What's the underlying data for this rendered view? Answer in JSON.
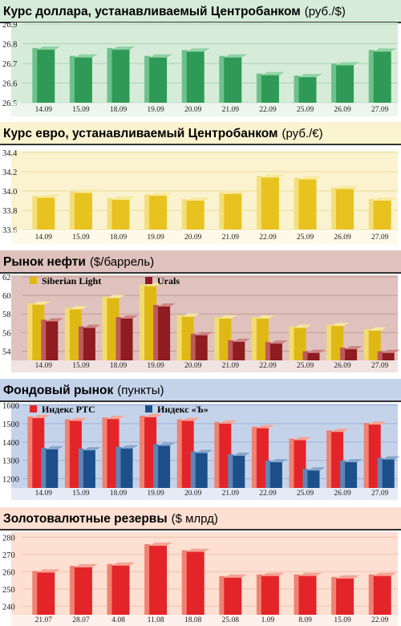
{
  "colors": {
    "usd": {
      "front": "#2f9a57",
      "side": "#6cc28a",
      "top": "#8fd3a5",
      "panel": "#d6ecd9",
      "grid": "#a9d3b4"
    },
    "eur": {
      "front": "#e8c31f",
      "side": "#f3df7a",
      "top": "#f7e99f",
      "panel": "#fbf3cf",
      "grid": "#e9dd9a"
    },
    "oil_a": {
      "front": "#e0b814",
      "side": "#f2dc72",
      "top": "#f6e79b"
    },
    "oil_b": {
      "front": "#8e1c20",
      "side": "#bf5a5c",
      "top": "#cf8385"
    },
    "oil_panel": "#dfc2bd",
    "oil_grid": "#c39d97",
    "stock_a": {
      "front": "#e3252a",
      "side": "#f08272",
      "top": "#f5a395"
    },
    "stock_b": {
      "front": "#1d4f8a",
      "side": "#5d86b8",
      "top": "#87a6cc"
    },
    "stock_panel": "#c5d3ea",
    "stock_grid": "#9fb3d5",
    "res": {
      "front": "#e3252a",
      "side": "#f08272",
      "top": "#f5a395",
      "panel": "#fde0d2",
      "grid": "#f0bfae"
    }
  },
  "chart_data": [
    {
      "type": "bar",
      "title": "Курс доллара, устанавливаемый Центробанком",
      "unit": "(руб./$)",
      "categories": [
        "14.09",
        "15.09",
        "18.09",
        "19.09",
        "20.09",
        "21.09",
        "22.09",
        "25.09",
        "26.09",
        "27.09"
      ],
      "yticks": [
        "26.9",
        "26.8",
        "26.7",
        "26.6",
        "26.5"
      ],
      "ylim": [
        26.5,
        26.9
      ],
      "series": [
        {
          "values": [
            26.77,
            26.73,
            26.77,
            26.73,
            26.76,
            26.73,
            26.64,
            26.63,
            26.69,
            26.76
          ]
        }
      ]
    },
    {
      "type": "bar",
      "title": "Курс евро, устанавливаемый Центробанком",
      "unit": "(руб./€)",
      "categories": [
        "14.09",
        "15.09",
        "18.09",
        "19.09",
        "20.09",
        "21.09",
        "22.09",
        "25.09",
        "26.09",
        "27.09"
      ],
      "yticks": [
        "34.4",
        "34.2",
        "34.0",
        "33.8",
        "33.6"
      ],
      "ylim": [
        33.6,
        34.4
      ],
      "series": [
        {
          "values": [
            33.93,
            33.98,
            33.91,
            33.95,
            33.9,
            33.97,
            34.14,
            34.12,
            34.02,
            33.9
          ]
        }
      ]
    },
    {
      "type": "bar",
      "title": "Рынок нефти",
      "unit": "($/баррель)",
      "categories": [
        "14.09",
        "15.09",
        "18.09",
        "19.09",
        "20.09",
        "21.09",
        "22.09",
        "25.09",
        "26.09",
        "27.09"
      ],
      "yticks": [
        "62",
        "60",
        "58",
        "56",
        "54"
      ],
      "ylim": [
        53,
        62
      ],
      "legend_position": "top-left",
      "series": [
        {
          "name": "Siberian Light",
          "values": [
            59.0,
            58.5,
            59.7,
            61.0,
            57.7,
            57.5,
            57.5,
            56.5,
            56.7,
            56.2
          ]
        },
        {
          "name": "Urals",
          "values": [
            57.2,
            56.5,
            57.5,
            58.8,
            55.7,
            55.0,
            54.8,
            53.8,
            54.2,
            53.8
          ]
        }
      ]
    },
    {
      "type": "bar",
      "title": "Фондовый рынок",
      "unit": "(пункты)",
      "categories": [
        "14.09",
        "15.09",
        "18.09",
        "19.09",
        "20.09",
        "21.09",
        "22.09",
        "25.09",
        "26.09",
        "27.09"
      ],
      "yticks": [
        "1600",
        "1500",
        "1400",
        "1300",
        "1200"
      ],
      "ylim": [
        1150,
        1600
      ],
      "legend_position": "top-left",
      "series": [
        {
          "name": "Индекс РТС",
          "values": [
            1530,
            1515,
            1525,
            1535,
            1515,
            1500,
            1475,
            1410,
            1455,
            1495
          ]
        },
        {
          "name": "Индекс «Ъ»",
          "values": [
            1360,
            1355,
            1365,
            1380,
            1340,
            1325,
            1290,
            1245,
            1290,
            1305
          ]
        }
      ]
    },
    {
      "type": "bar",
      "title": "Золотовалютные резервы",
      "unit": "($ млрд)",
      "categories": [
        "21.07",
        "28.07",
        "4.08",
        "11.08",
        "18.08",
        "25.08",
        "1.09",
        "8.09",
        "15.09",
        "22.09"
      ],
      "yticks": [
        "280",
        "270",
        "260",
        "250",
        "240"
      ],
      "ylim": [
        235,
        282
      ],
      "series": [
        {
          "values": [
            259.5,
            262.5,
            263.5,
            275.0,
            271.5,
            256.5,
            257.5,
            257.5,
            256.0,
            257.5
          ]
        }
      ]
    }
  ]
}
